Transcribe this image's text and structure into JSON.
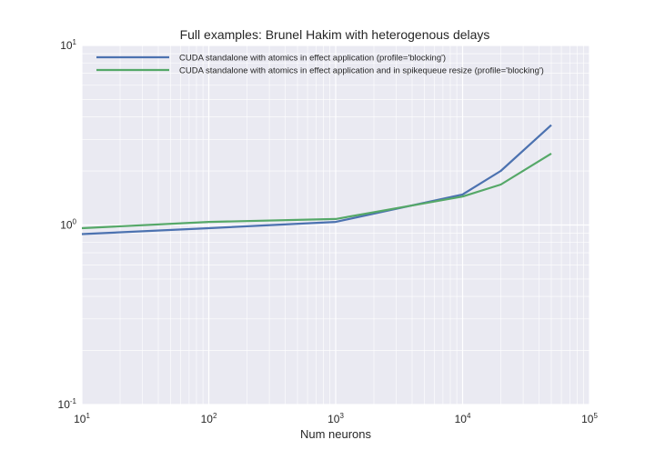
{
  "chart_data": {
    "type": "line",
    "title": "Full examples: Brunel Hakim with heterogenous delays",
    "xlabel": "Num neurons",
    "ylabel": "",
    "xscale": "log",
    "yscale": "log",
    "xlim": [
      10,
      100000
    ],
    "ylim": [
      0.1,
      10
    ],
    "grid": true,
    "legend_position": "top-left",
    "x_ticks": [
      {
        "base": "10",
        "exp": "1",
        "value": 10
      },
      {
        "base": "10",
        "exp": "2",
        "value": 100
      },
      {
        "base": "10",
        "exp": "3",
        "value": 1000
      },
      {
        "base": "10",
        "exp": "4",
        "value": 10000
      },
      {
        "base": "10",
        "exp": "5",
        "value": 100000
      }
    ],
    "y_ticks": [
      {
        "base": "10",
        "exp": "-1",
        "value": 0.1
      },
      {
        "base": "10",
        "exp": "0",
        "value": 1
      },
      {
        "base": "10",
        "exp": "1",
        "value": 10
      }
    ],
    "series": [
      {
        "name": "CUDA standalone with atomics in effect application (profile='blocking')",
        "color": "#4c72b0",
        "x": [
          10,
          100,
          1000,
          10000,
          20000,
          50000
        ],
        "y": [
          0.89,
          0.96,
          1.04,
          1.48,
          2.0,
          3.6
        ]
      },
      {
        "name": "CUDA standalone with atomics in effect application and in spikequeue resize (profile='blocking')",
        "color": "#55a868",
        "x": [
          10,
          100,
          1000,
          10000,
          20000,
          50000
        ],
        "y": [
          0.96,
          1.04,
          1.08,
          1.44,
          1.68,
          2.5
        ]
      }
    ]
  }
}
